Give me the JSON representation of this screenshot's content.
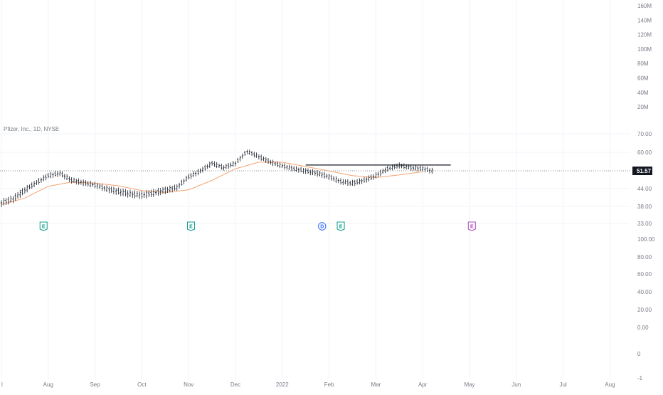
{
  "chart_data": {
    "type": "line",
    "symbol_label": "Pfizer, Inc., 1D, NYSE",
    "current_price_label": "51.57",
    "current_price": 51.57,
    "price_axis_ticks": [
      "70.00",
      "60.00",
      "44.00",
      "38.00",
      "33.00"
    ],
    "price_axis_values": [
      70,
      60,
      44,
      38,
      33
    ],
    "volume_axis_ticks": [
      "160M",
      "140M",
      "120M",
      "100M",
      "80M",
      "60M",
      "40M",
      "20M"
    ],
    "volume_axis_values": [
      160,
      140,
      120,
      100,
      80,
      60,
      40,
      20
    ],
    "oscillator_axis_ticks": [
      "100.00",
      "80.00",
      "60.00",
      "40.00",
      "20.00",
      "0.00",
      "0",
      "-1"
    ],
    "oscillator_axis_values": [
      100,
      80,
      60,
      40,
      20,
      0
    ],
    "time_axis_labels": [
      "l",
      "Aug",
      "Sep",
      "Oct",
      "Nov",
      "Dec",
      "2022",
      "Feb",
      "Mar",
      "Apr",
      "May",
      "Jun",
      "Jul",
      "Aug"
    ],
    "series": [
      {
        "type": "price",
        "color": "#131722",
        "x": [
          0,
          0.25,
          0.5,
          0.75,
          1,
          1.25,
          1.5,
          1.75,
          2,
          2.25,
          2.5,
          2.75,
          3,
          3.25,
          3.5,
          3.75,
          4,
          4.25,
          4.5,
          4.75,
          5,
          5.25,
          5.5,
          5.75,
          6,
          6.25,
          6.5,
          6.75,
          7,
          7.25,
          7.5,
          7.75,
          8,
          8.25,
          8.5,
          8.75,
          9,
          9.2
        ],
        "values": [
          39.2,
          40.5,
          43.5,
          46.5,
          49.5,
          50.5,
          47.5,
          46.5,
          45.5,
          44,
          43,
          42.2,
          41.8,
          42.5,
          43.5,
          44.5,
          49,
          51.5,
          55,
          53,
          55,
          60.5,
          58,
          55.5,
          53.8,
          52.5,
          51.5,
          50.5,
          49,
          47,
          46.3,
          47.5,
          49.5,
          52.5,
          54,
          53,
          52.5,
          51.57
        ]
      },
      {
        "type": "moving_average",
        "color": "#f5a26f",
        "x": [
          0,
          0.5,
          1,
          1.5,
          2,
          2.5,
          3,
          3.5,
          4,
          4.5,
          5,
          5.5,
          6,
          6.5,
          7,
          7.5,
          8,
          8.5,
          9
        ],
        "values": [
          38.6,
          40.8,
          45,
          46.8,
          46.3,
          45.2,
          43.3,
          42.7,
          43.6,
          47.5,
          52.5,
          55.5,
          55.5,
          53.5,
          51.5,
          49.5,
          48.7,
          49.8,
          51.2
        ]
      }
    ],
    "resistance_line": {
      "price": 54.2,
      "x_start": 6.5,
      "x_end": 9.6,
      "color": "#131722"
    },
    "events": [
      {
        "label": "E",
        "x": 0.9,
        "color": "#0f9d8b"
      },
      {
        "label": "E",
        "x": 4.05,
        "color": "#0f9d8b"
      },
      {
        "label": "D",
        "x": 6.85,
        "color": "#2962ff"
      },
      {
        "label": "E",
        "x": 7.25,
        "color": "#0f9d8b"
      },
      {
        "label": "E",
        "x": 10.05,
        "color": "#ab47bc"
      }
    ],
    "grid": true,
    "xlabel": "",
    "ylabel": ""
  }
}
